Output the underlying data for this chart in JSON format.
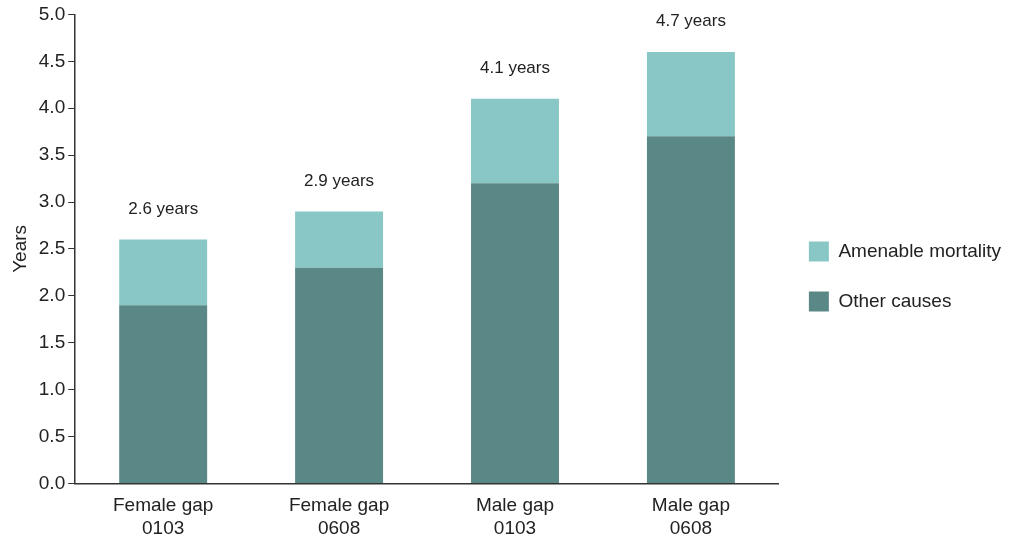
{
  "chart_data": {
    "type": "bar",
    "ylabel": "Years",
    "stacked": true,
    "legend": "right",
    "grid": false,
    "categories": [
      "Female gap 0103",
      "Female gap 0608",
      "Male gap 0103",
      "Male gap 0608"
    ],
    "series": [
      {
        "name": "Other causes",
        "color": "#5a8886",
        "values": [
          1.9,
          2.3,
          3.2,
          3.7
        ]
      },
      {
        "name": "Amenable mortality",
        "color": "#89c7c7",
        "values": [
          0.7,
          0.6,
          0.9,
          0.9
        ]
      }
    ],
    "totals": [
      "2.6 years",
      "2.9 years",
      "4.1 years",
      "4.7 years"
    ],
    "ylim": [
      0,
      5
    ],
    "yticks": [
      {
        "value": 0,
        "label": "0.0"
      },
      {
        "value": 0.5,
        "label": "0.5"
      },
      {
        "value": 1,
        "label": "1.0"
      },
      {
        "value": 1.5,
        "label": "1.5"
      },
      {
        "value": 2,
        "label": "2.0"
      },
      {
        "value": 2.5,
        "label": "2.5"
      },
      {
        "value": 3,
        "label": "3.0"
      },
      {
        "value": 3.5,
        "label": "3.5"
      },
      {
        "value": 4,
        "label": "4.0"
      },
      {
        "value": 4.5,
        "label": "4.5"
      },
      {
        "value": 5,
        "label": "5.0"
      }
    ]
  }
}
